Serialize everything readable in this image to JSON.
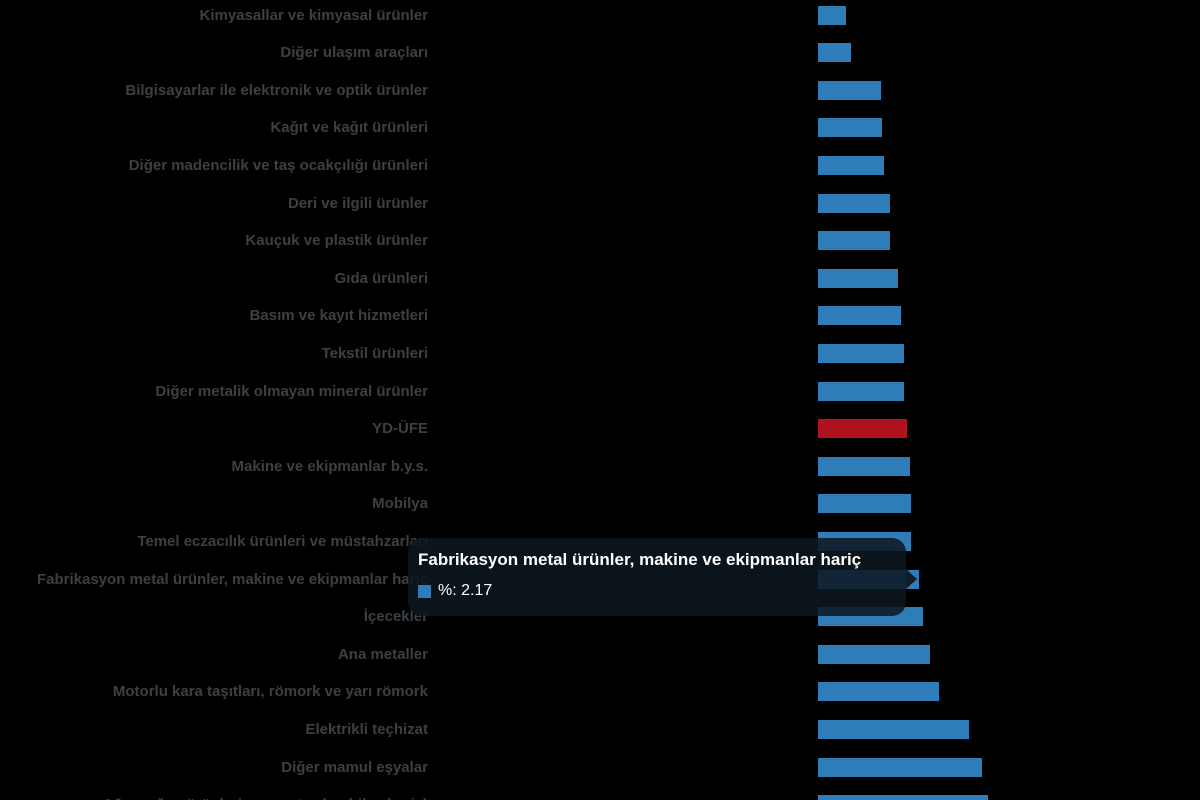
{
  "chart_data": {
    "type": "bar",
    "orientation": "horizontal",
    "unit": "%",
    "title": "",
    "xlabel": "",
    "ylabel": "",
    "grid": false,
    "legend_position": "none",
    "categories": [
      "Kimyasallar ve kimyasal ürünler",
      "Diğer ulaşım araçları",
      "Bilgisayarlar ile elektronik ve optik ürünler",
      "Kağıt ve kağıt ürünleri",
      "Diğer madencilik ve taş ocakçılığı ürünleri",
      "Deri ve ilgili ürünler",
      "Kauçuk ve plastik ürünler",
      "Gıda ürünleri",
      "Basım ve kayıt hizmetleri",
      "Tekstil ürünleri",
      "Diğer metalik olmayan mineral ürünler",
      "YD-ÜFE",
      "Makine ve ekipmanlar b.y.s.",
      "Mobilya",
      "Temel eczacılık ürünleri ve müstahzarları",
      "Fabrikasyon metal ürünler, makine ve ekipmanlar hariç",
      "İçecekler",
      "Ana metaller",
      "Motorlu kara taşıtları, römork ve yarı römork",
      "Elektrikli teçhizat",
      "Diğer mamul eşyalar",
      "Ağaç, ağaç ürünleri ve mantar (mobilya hariç)"
    ],
    "values": [
      0.61,
      0.72,
      1.35,
      1.38,
      1.43,
      1.54,
      1.55,
      1.71,
      1.78,
      1.84,
      1.84,
      1.91,
      1.97,
      1.99,
      2.0,
      2.17,
      2.25,
      2.4,
      2.6,
      3.24,
      3.53,
      3.66
    ],
    "highlight_index": 11,
    "hovered_index": 15,
    "colors": {
      "bar": "#2e7cb8",
      "highlight": "#b01320",
      "label_text": "#3c4043"
    }
  },
  "tooltip": {
    "title": "Fabrikasyon metal ürünler, makine ve ekipmanlar hariç",
    "value_line": "%: 2.17",
    "series_label": "%",
    "value": "2.17",
    "marker_color": "#2e7cb8"
  }
}
